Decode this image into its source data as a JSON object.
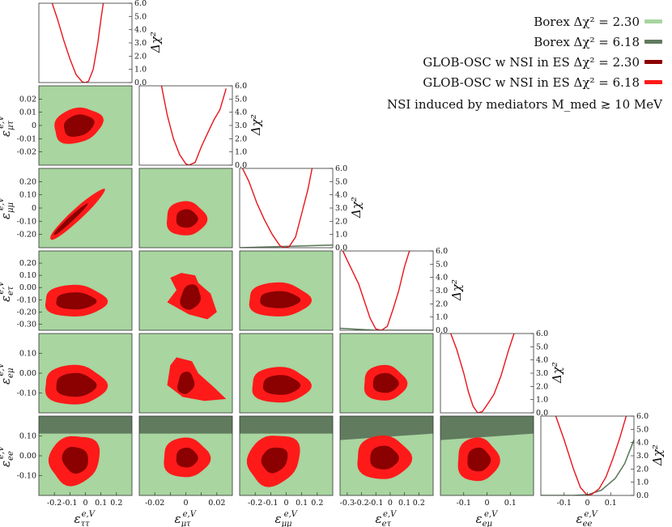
{
  "chart_data": {
    "type": "corner",
    "parameters": [
      "ε_ττ^{e,V}",
      "ε_μτ^{e,V}",
      "ε_μμ^{e,V}",
      "ε_eτ^{e,V}",
      "ε_eμ^{e,V}",
      "ε_ee^{e,V}"
    ],
    "parameter_labels": [
      {
        "main": "ε",
        "sup": "e,V",
        "sub": "ττ"
      },
      {
        "main": "ε",
        "sup": "e,V",
        "sub": "μτ"
      },
      {
        "main": "ε",
        "sup": "e,V",
        "sub": "μμ"
      },
      {
        "main": "ε",
        "sup": "e,V",
        "sub": "eτ"
      },
      {
        "main": "ε",
        "sup": "e,V",
        "sub": "eμ"
      },
      {
        "main": "ε",
        "sup": "e,V",
        "sub": "ee"
      }
    ],
    "ranges": [
      [
        -0.3,
        0.3
      ],
      [
        -0.03,
        0.03
      ],
      [
        -0.3,
        0.3
      ],
      [
        -0.35,
        0.3
      ],
      [
        -0.2,
        0.2
      ],
      [
        -0.2,
        0.2
      ]
    ],
    "ticks": [
      [
        -0.2,
        -0.1,
        0,
        0.1,
        0.2
      ],
      [
        -0.02,
        -0.01,
        0,
        0.01,
        0.02
      ],
      [
        -0.2,
        -0.1,
        0,
        0.1,
        0.2
      ],
      [
        -0.3,
        -0.2,
        -0.1,
        0,
        0.1,
        0.2
      ],
      [
        -0.1,
        0,
        0.1
      ],
      [
        -0.1,
        0,
        0.1
      ]
    ],
    "x_tick_labels": [
      [
        "-0.2",
        "-0.1",
        "0",
        "0.1",
        "0.2"
      ],
      [
        "-0.02",
        "",
        "0",
        "",
        "0.02"
      ],
      [
        "-0.2",
        "-0.1",
        "0",
        "0.1",
        "0.2"
      ],
      [
        "-0.3",
        "-0.2",
        "-0.1",
        "0",
        "0.1",
        "0.2"
      ],
      [
        "-0.1",
        "0",
        "0.1"
      ],
      [
        "-0.1",
        "0",
        "0.1"
      ]
    ],
    "y_tick_labels": [
      [],
      [
        "-0.02",
        "-0.01",
        "0",
        "0.01",
        "0.02"
      ],
      [
        "-0.20",
        "-0.10",
        "0",
        "0.10",
        "0.20"
      ],
      [
        "-0.30",
        "-0.20",
        "-0.10",
        "0.00",
        "0.10",
        "0.20"
      ],
      [
        "-0.10",
        "0.00",
        "0.10"
      ],
      [
        "-0.10",
        "0.00",
        "0.10"
      ]
    ],
    "delta_chi2_axis": {
      "label": "Δχ²",
      "range": [
        0,
        6
      ],
      "ticks": [
        "0.0",
        "1.0",
        "2.0",
        "3.0",
        "4.0",
        "5.0",
        "6.0"
      ]
    },
    "colors": {
      "borex_230": "#a8d5a0",
      "borex_618": "#617b5f",
      "glob_230": "#8b0000",
      "glob_618": "#ff1a1a",
      "glob_line": "#e8141a",
      "borex_line": "#5f7d5f"
    },
    "profiles": [
      {
        "param": "ε_ττ",
        "glob_x": [
          -0.22,
          -0.18,
          -0.14,
          -0.1,
          -0.06,
          -0.02,
          0,
          0.02,
          0.05,
          0.08,
          0.1,
          0.12
        ],
        "glob_dchi2": [
          6.2,
          4.8,
          3.2,
          1.8,
          0.6,
          0.05,
          0.0,
          0.1,
          1.0,
          3.0,
          4.8,
          6.4
        ]
      },
      {
        "param": "ε_μτ",
        "glob_x": [
          -0.016,
          -0.012,
          -0.008,
          -0.004,
          0,
          0.002,
          0.006,
          0.01,
          0.014,
          0.018,
          0.022,
          0.026
        ],
        "glob_dchi2": [
          6.2,
          3.8,
          2.0,
          0.8,
          0.1,
          0.0,
          0.2,
          1.4,
          2.4,
          3.4,
          4.2,
          5.8
        ]
      },
      {
        "param": "ε_μμ",
        "glob_x": [
          -0.29,
          -0.24,
          -0.19,
          -0.14,
          -0.09,
          -0.04,
          -0.01,
          0.02,
          0.06,
          0.1,
          0.14,
          0.17
        ],
        "glob_dchi2": [
          6.2,
          5.0,
          3.4,
          2.1,
          1.0,
          0.15,
          0.0,
          0.1,
          0.8,
          2.6,
          4.4,
          6.2
        ],
        "borex_x": [
          -0.3,
          0.3
        ],
        "borex_dchi2": [
          0.0,
          0.2
        ]
      },
      {
        "param": "ε_eτ",
        "glob_x": [
          -0.33,
          -0.3,
          -0.26,
          -0.22,
          -0.18,
          -0.14,
          -0.1,
          -0.06,
          -0.02,
          0.02,
          0.06,
          0.1,
          0.14
        ],
        "glob_dchi2": [
          6.0,
          5.3,
          4.4,
          3.5,
          2.2,
          0.9,
          0.1,
          0.0,
          0.3,
          1.6,
          3.0,
          4.8,
          6.2
        ],
        "borex_x": [
          -0.35,
          -0.1,
          0.3
        ],
        "borex_dchi2": [
          0.15,
          0.0,
          0.0
        ]
      },
      {
        "param": "ε_eμ",
        "glob_x": [
          -0.16,
          -0.13,
          -0.1,
          -0.08,
          -0.06,
          -0.04,
          -0.02,
          0,
          0.03,
          0.06,
          0.09,
          0.12
        ],
        "glob_dchi2": [
          6.2,
          4.8,
          3.0,
          1.6,
          0.5,
          0.0,
          0.1,
          0.6,
          1.4,
          2.8,
          4.6,
          6.2
        ]
      },
      {
        "param": "ε_ee",
        "glob_x": [
          -0.14,
          -0.1,
          -0.06,
          -0.03,
          0,
          0.02,
          0.05,
          0.08,
          0.11,
          0.14,
          0.17
        ],
        "glob_dchi2": [
          6.2,
          4.2,
          2.0,
          0.6,
          0.0,
          0.1,
          0.5,
          1.4,
          2.8,
          4.4,
          6.2
        ],
        "borex_x": [
          -0.2,
          -0.06,
          0.0,
          0.06,
          0.12,
          0.16,
          0.2
        ],
        "borex_dchi2": [
          0.0,
          0.0,
          0.05,
          0.4,
          1.3,
          2.4,
          4.2
        ]
      }
    ],
    "contours_note": "2D panels: Borexino Δχ²=2.30 and 6.18 regions (green shades) fill almost all of the plotted ranges except near top of ε_ee row; GLOB-OSC w NSI in ES Δχ²=2.30 (dark red) and 6.18 (red) regions are compact blobs near the origin; ε_ττ–ε_μμ panel shows a narrow diagonal band.",
    "blobs": {
      "1,0": {
        "cx": -0.05,
        "cy": 0.0,
        "r68": [
          0.1,
          0.008
        ],
        "r95": [
          0.16,
          0.013
        ],
        "rot": 0.3
      },
      "2,0": {
        "band": true
      },
      "2,1": {
        "cx": 0.0,
        "cy": -0.08,
        "r68": [
          0.007,
          0.07
        ],
        "r95": [
          0.013,
          0.13
        ],
        "rot": 0
      },
      "3,0": {
        "cx": -0.07,
        "cy": -0.11,
        "r68": [
          0.13,
          0.07
        ],
        "r95": [
          0.2,
          0.13
        ],
        "rot": 0
      },
      "3,1": {
        "special": "mu_tau_e_tau"
      },
      "3,2": {
        "cx": -0.05,
        "cy": -0.1,
        "r68": [
          0.13,
          0.07
        ],
        "r95": [
          0.2,
          0.14
        ],
        "rot": 0
      },
      "4,0": {
        "cx": -0.07,
        "cy": -0.06,
        "r68": [
          0.13,
          0.06
        ],
        "r95": [
          0.2,
          0.1
        ],
        "rot": 0
      },
      "4,1": {
        "special": "mu_tau_e_mu"
      },
      "4,2": {
        "cx": -0.04,
        "cy": -0.06,
        "r68": [
          0.12,
          0.05
        ],
        "r95": [
          0.19,
          0.09
        ],
        "rot": 0
      },
      "4,3": {
        "cx": -0.04,
        "cy": -0.05,
        "r68": [
          0.09,
          0.05
        ],
        "r95": [
          0.15,
          0.09
        ],
        "rot": 0
      },
      "5,0": {
        "cx": -0.07,
        "cy": -0.02,
        "r68": [
          0.08,
          0.07
        ],
        "r95": [
          0.17,
          0.12
        ],
        "rot": 0.7
      },
      "5,1": {
        "cx": 0.0,
        "cy": -0.01,
        "r68": [
          0.007,
          0.05
        ],
        "r95": [
          0.015,
          0.1
        ],
        "rot": 0
      },
      "5,2": {
        "cx": -0.08,
        "cy": -0.02,
        "r68": [
          0.09,
          0.06
        ],
        "r95": [
          0.18,
          0.12
        ],
        "rot": 0.7
      },
      "5,3": {
        "cx": -0.05,
        "cy": -0.01,
        "r68": [
          0.1,
          0.06
        ],
        "r95": [
          0.19,
          0.11
        ],
        "rot": 0
      },
      "5,4": {
        "cx": -0.04,
        "cy": -0.02,
        "r68": [
          0.05,
          0.06
        ],
        "r95": [
          0.09,
          0.11
        ],
        "rot": 0
      }
    },
    "borex_edge_ee": {
      "edge_618_ee": 0.12,
      "edge_230_ee": 0.15
    }
  },
  "legend": {
    "items": [
      {
        "label": "Borex Δχ² = 2.30",
        "color": "#a8d5a0"
      },
      {
        "label": "Borex Δχ² = 6.18",
        "color": "#617b5f"
      },
      {
        "label": "GLOB-OSC w NSI in ES Δχ² = 2.30",
        "color": "#8b0000"
      },
      {
        "label": "GLOB-OSC w NSI in ES Δχ² = 6.18",
        "color": "#ff1a1a"
      }
    ],
    "note": "NSI induced by mediators M_med ≳ 10 MeV"
  }
}
